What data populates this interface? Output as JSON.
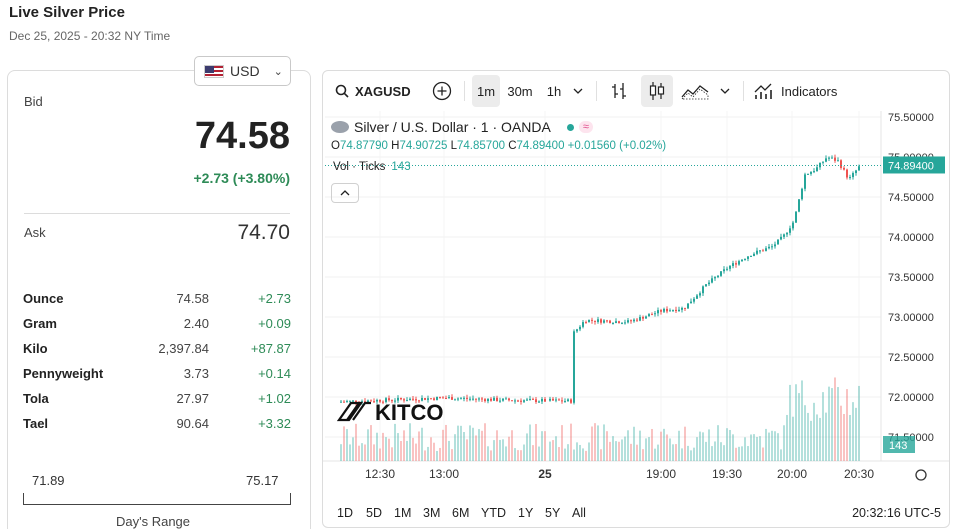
{
  "page": {
    "title": "Live Silver Price",
    "date": "Dec 25, 2025 - 20:32 NY Time"
  },
  "currency": {
    "label": "USD",
    "icon": "us-flag-icon"
  },
  "quote": {
    "bid_label": "Bid",
    "bid_value": "74.58",
    "bid_change": "+2.73 (+3.80%)",
    "ask_label": "Ask",
    "ask_value": "74.70"
  },
  "units": [
    {
      "name": "Ounce",
      "value": "74.58",
      "change": "+2.73"
    },
    {
      "name": "Gram",
      "value": "2.40",
      "change": "+0.09"
    },
    {
      "name": "Kilo",
      "value": "2,397.84",
      "change": "+87.87"
    },
    {
      "name": "Pennyweight",
      "value": "3.73",
      "change": "+0.14"
    },
    {
      "name": "Tola",
      "value": "27.97",
      "change": "+1.02"
    },
    {
      "name": "Tael",
      "value": "90.64",
      "change": "+3.32"
    }
  ],
  "days_range": {
    "low": "71.89",
    "high": "75.17",
    "label": "Day's Range"
  },
  "toolbar": {
    "symbol": "XAGUSD",
    "intervals": [
      "1m",
      "30m",
      "1h"
    ],
    "active_interval": "1m",
    "indicators_label": "Indicators"
  },
  "legend": {
    "instrument": "Silver / U.S. Dollar · 1 · OANDA",
    "badge": "≈",
    "o_label": "O",
    "o_value": "74.87790",
    "h_label": "H",
    "h_value": "74.90725",
    "l_label": "L",
    "l_value": "74.85700",
    "c_label": "C",
    "c_value": "74.89400",
    "change": "+0.01560 (+0.02%)",
    "vol_label": "Vol · Ticks",
    "vol_value": "143"
  },
  "watermark": "KITCO",
  "periods": [
    "1D",
    "5D",
    "1M",
    "3M",
    "6M",
    "YTD",
    "1Y",
    "5Y",
    "All"
  ],
  "clock": "20:32:16 UTC-5",
  "colors": {
    "up": "#26a69a",
    "down": "#ef5350",
    "text_up": "#2e8b57"
  },
  "chart_data": {
    "type": "candlestick",
    "symbol": "XAGUSD",
    "y_ticks": [
      "75.50000",
      "75.00000",
      "74.50000",
      "74.00000",
      "73.50000",
      "73.00000",
      "72.50000",
      "72.00000",
      "71.50000"
    ],
    "ylim": [
      71.35,
      75.55
    ],
    "x_ticks": [
      "12:30",
      "13:00",
      "25",
      "19:00",
      "19:30",
      "20:00",
      "20:30"
    ],
    "last_price": "74.89400",
    "last_volume": "143",
    "price_path": [
      [
        "12:10",
        71.94
      ],
      [
        "12:30",
        71.96
      ],
      [
        "13:00",
        71.99
      ],
      [
        "13:30",
        71.96
      ],
      [
        "14:00",
        71.95
      ],
      [
        "18:10",
        72.93
      ],
      [
        "18:14",
        72.62
      ],
      [
        "18:25",
        72.96
      ],
      [
        "18:45",
        72.94
      ],
      [
        "19:00",
        73.08
      ],
      [
        "19:10",
        73.11
      ],
      [
        "19:20",
        73.4
      ],
      [
        "19:30",
        73.62
      ],
      [
        "19:40",
        73.78
      ],
      [
        "19:50",
        73.88
      ],
      [
        "19:55",
        74.0
      ],
      [
        "20:00",
        74.2
      ],
      [
        "20:05",
        74.78
      ],
      [
        "20:10",
        74.85
      ],
      [
        "20:15",
        75.0
      ],
      [
        "20:20",
        74.95
      ],
      [
        "20:25",
        74.72
      ],
      [
        "20:30",
        74.89
      ]
    ]
  }
}
